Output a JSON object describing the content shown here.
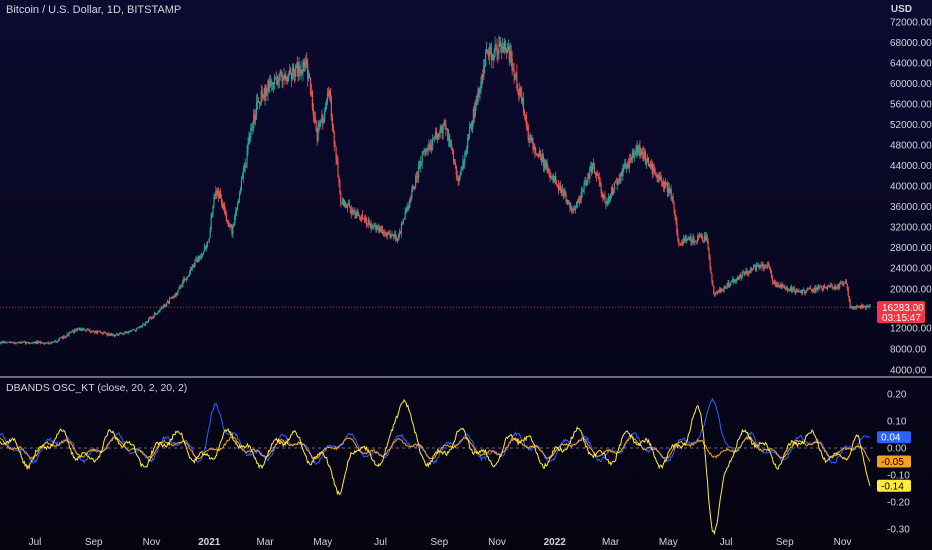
{
  "header": {
    "title": "Bitcoin / U.S. Dollar, 1D, BITSTAMP",
    "currency": "USD"
  },
  "indicator": {
    "title": "DBANDS OSC_KT (close, 20, 2, 20, 2)"
  },
  "price_badge": {
    "price": "16283.00",
    "countdown": "03:15:47",
    "color": "#f23645"
  },
  "colors": {
    "up": "#26a69a",
    "down": "#ef5350",
    "blue": "#2962ff",
    "orange": "#f7a21b",
    "yellow": "#ffeb3b",
    "divider": "#d1d4dc"
  },
  "chart_data": [
    {
      "type": "candlestick",
      "title": "Bitcoin / U.S. Dollar, 1D, BITSTAMP",
      "ylabel": "USD",
      "ylim": [
        4000,
        72000
      ],
      "y_ticks": [
        "72000.00",
        "68000.00",
        "64000.00",
        "60000.00",
        "56000.00",
        "52000.00",
        "48000.00",
        "44000.00",
        "40000.00",
        "36000.00",
        "32000.00",
        "28000.00",
        "24000.00",
        "20000.00",
        "12000.00",
        "8000.00",
        "4000.00"
      ],
      "x_ticks": [
        {
          "label": "Jul",
          "bold": false
        },
        {
          "label": "Sep",
          "bold": false
        },
        {
          "label": "Nov",
          "bold": false
        },
        {
          "label": "2021",
          "bold": true
        },
        {
          "label": "Mar",
          "bold": false
        },
        {
          "label": "May",
          "bold": false
        },
        {
          "label": "Jul",
          "bold": false
        },
        {
          "label": "Sep",
          "bold": false
        },
        {
          "label": "Nov",
          "bold": false
        },
        {
          "label": "2022",
          "bold": true
        },
        {
          "label": "Mar",
          "bold": false
        },
        {
          "label": "May",
          "bold": false
        },
        {
          "label": "Jul",
          "bold": false
        },
        {
          "label": "Sep",
          "bold": false
        },
        {
          "label": "Nov",
          "bold": false
        }
      ],
      "x_range": [
        "2020-05-25",
        "2022-11-30"
      ],
      "price_keypoints": [
        {
          "date": "2020-05-25",
          "close": 9200
        },
        {
          "date": "2020-07-20",
          "close": 9200
        },
        {
          "date": "2020-08-15",
          "close": 11800
        },
        {
          "date": "2020-09-25",
          "close": 10600
        },
        {
          "date": "2020-10-20",
          "close": 12000
        },
        {
          "date": "2020-11-25",
          "close": 18500
        },
        {
          "date": "2020-12-31",
          "close": 29000
        },
        {
          "date": "2021-01-08",
          "close": 40000
        },
        {
          "date": "2021-01-25",
          "close": 31000
        },
        {
          "date": "2021-02-21",
          "close": 57000
        },
        {
          "date": "2021-03-13",
          "close": 61000
        },
        {
          "date": "2021-04-14",
          "close": 63500
        },
        {
          "date": "2021-04-25",
          "close": 50000
        },
        {
          "date": "2021-05-08",
          "close": 58000
        },
        {
          "date": "2021-05-20",
          "close": 37000
        },
        {
          "date": "2021-06-22",
          "close": 32000
        },
        {
          "date": "2021-07-20",
          "close": 30000
        },
        {
          "date": "2021-08-15",
          "close": 46000
        },
        {
          "date": "2021-09-07",
          "close": 52000
        },
        {
          "date": "2021-09-22",
          "close": 41000
        },
        {
          "date": "2021-10-20",
          "close": 65000
        },
        {
          "date": "2021-11-10",
          "close": 68000
        },
        {
          "date": "2021-11-28",
          "close": 56000
        },
        {
          "date": "2021-12-05",
          "close": 49000
        },
        {
          "date": "2022-01-22",
          "close": 35000
        },
        {
          "date": "2022-02-10",
          "close": 44000
        },
        {
          "date": "2022-02-24",
          "close": 37000
        },
        {
          "date": "2022-03-29",
          "close": 47500
        },
        {
          "date": "2022-05-05",
          "close": 38000
        },
        {
          "date": "2022-05-12",
          "close": 29000
        },
        {
          "date": "2022-06-10",
          "close": 30000
        },
        {
          "date": "2022-06-18",
          "close": 19000
        },
        {
          "date": "2022-07-29",
          "close": 24000
        },
        {
          "date": "2022-08-15",
          "close": 24500
        },
        {
          "date": "2022-08-20",
          "close": 21000
        },
        {
          "date": "2022-09-15",
          "close": 19500
        },
        {
          "date": "2022-10-25",
          "close": 20500
        },
        {
          "date": "2022-11-05",
          "close": 21200
        },
        {
          "date": "2022-11-09",
          "close": 16500
        },
        {
          "date": "2022-11-30",
          "close": 16283
        }
      ],
      "last_price": 16283
    },
    {
      "type": "line",
      "title": "DBANDS OSC_KT (close, 20, 2, 20, 2)",
      "ylim": [
        -0.3,
        0.22
      ],
      "y_ticks": [
        "0.20",
        "0.10",
        "0.00",
        "-0.10",
        "-0.20",
        "-0.30"
      ],
      "series": [
        {
          "color": "#2962ff",
          "last": 0.04,
          "label": "0.04",
          "seed": 11
        },
        {
          "color": "#f7a21b",
          "last": -0.05,
          "label": "-0.05",
          "seed": 23
        },
        {
          "color": "#ffeb3b",
          "last": -0.14,
          "label": "-0.14",
          "seed": 37
        }
      ],
      "notable_points": [
        {
          "series": 0,
          "date": "2021-01-08",
          "value": 0.16
        },
        {
          "series": 0,
          "date": "2022-06-18",
          "value": 0.22
        },
        {
          "series": 2,
          "date": "2021-05-20",
          "value": -0.22
        },
        {
          "series": 2,
          "date": "2022-06-18",
          "value": -0.3
        },
        {
          "series": 2,
          "date": "2021-07-25",
          "value": 0.15
        },
        {
          "series": 2,
          "date": "2022-06-05",
          "value": 0.13
        }
      ]
    }
  ]
}
